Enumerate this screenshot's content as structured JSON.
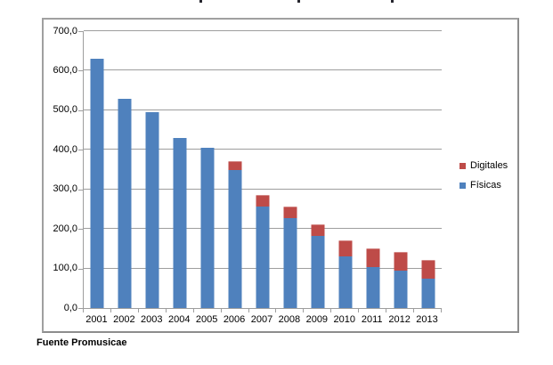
{
  "chart_data": {
    "type": "bar",
    "stacked": true,
    "title": "",
    "xlabel": "",
    "ylabel": "",
    "categories": [
      "2001",
      "2002",
      "2003",
      "2004",
      "2005",
      "2006",
      "2007",
      "2008",
      "2009",
      "2010",
      "2011",
      "2012",
      "2013"
    ],
    "series": [
      {
        "name": "Físicas",
        "key": "fisicas",
        "color": "#4F81BD",
        "values": [
          630,
          530,
          495,
          430,
          405,
          350,
          257,
          228,
          183,
          130,
          104,
          94,
          74
        ]
      },
      {
        "name": "Digitales",
        "key": "digitales",
        "color": "#BE4B48",
        "values": [
          0,
          0,
          0,
          0,
          0,
          21,
          29,
          28,
          28,
          40,
          46,
          48,
          47
        ]
      }
    ],
    "ylim": [
      0,
      700
    ],
    "ytick_step": 100,
    "ytick_labels_top_to_bottom": [
      "700,0",
      "600,0",
      "500,0",
      "400,0",
      "300,0",
      "200,0",
      "100,0",
      "0,0"
    ],
    "grid": true,
    "legend_position": "right"
  },
  "legend": {
    "items": [
      {
        "label": "Digitales",
        "key": "digitales",
        "color": "#BE4B48"
      },
      {
        "label": "Físicas",
        "key": "fisicas",
        "color": "#4F81BD"
      }
    ]
  },
  "source": {
    "text": "Fuente Promusicae"
  },
  "colors": {
    "fisicas": "#4F81BD",
    "digitales": "#BE4B48",
    "gridline": "#9e9e9e",
    "frame_border": "#a0a0a0"
  }
}
